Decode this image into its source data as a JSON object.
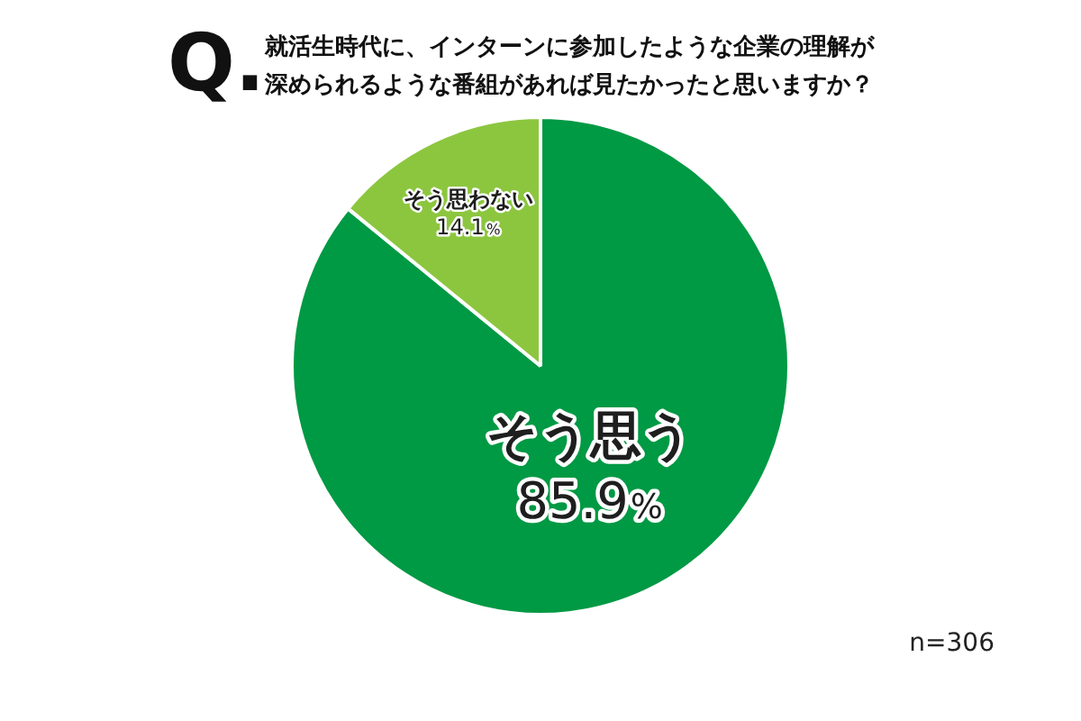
{
  "chart_data": {
    "type": "pie",
    "title": "Q.",
    "subtitle": "就活生時代に、インターンに参加したような企業の理解が深められるような番組があれば見たかったと思いますか？",
    "categories": [
      "そう思う",
      "そう思わない"
    ],
    "values": [
      85.9,
      14.1
    ],
    "colors": [
      "#009944",
      "#8cc63f"
    ],
    "value_labels": [
      "85.9%",
      "14.1%"
    ],
    "annotations": [
      "n=306"
    ]
  }
}
